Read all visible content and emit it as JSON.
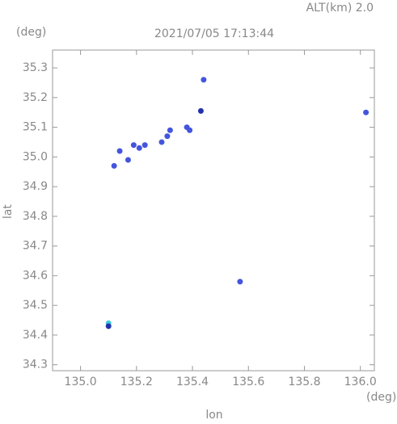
{
  "chart_data": {
    "type": "scatter",
    "altitude_label": "ALT(km) 2.0",
    "title": "2021/07/05 17:13:44",
    "y_unit": "(deg)",
    "x_unit": "(deg)",
    "ylabel": "lat",
    "xlabel": "lon",
    "x": [
      135.1,
      135.1,
      135.57,
      136.02,
      135.44,
      135.43,
      135.12,
      135.14,
      135.17,
      135.19,
      135.21,
      135.23,
      135.29,
      135.31,
      135.32,
      135.38,
      135.39
    ],
    "values": [
      34.44,
      34.43,
      34.58,
      35.15,
      35.26,
      35.155,
      34.97,
      35.02,
      34.99,
      35.04,
      35.03,
      35.04,
      35.05,
      35.07,
      35.09,
      35.1,
      35.09
    ],
    "colors": [
      "#44ccdd",
      "#2233aa",
      "#4455dd",
      "#4455dd",
      "#4455dd",
      "#2233aa",
      "#4455dd",
      "#4455dd",
      "#4455dd",
      "#4455dd",
      "#4455dd",
      "#4455dd",
      "#4455dd",
      "#4455dd",
      "#4455dd",
      "#4455dd",
      "#4455dd"
    ],
    "xlim": [
      134.9,
      136.05
    ],
    "ylim": [
      34.28,
      35.36
    ],
    "xticks": [
      {
        "value": 135,
        "label": "135.0"
      },
      135.2,
      135.4,
      135.6,
      135.8,
      {
        "value": 136,
        "label": "136.0"
      }
    ],
    "yticks": [
      34.3,
      34.4,
      34.5,
      34.6,
      34.7,
      34.8,
      34.9,
      {
        "value": 35,
        "label": "35.0"
      },
      35.1,
      35.2,
      35.3
    ]
  }
}
